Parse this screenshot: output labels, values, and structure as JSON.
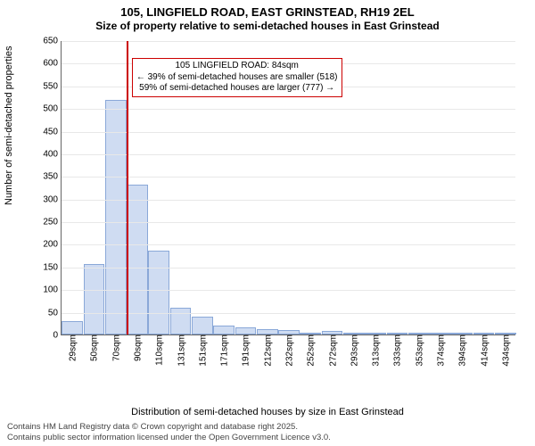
{
  "title": "105, LINGFIELD ROAD, EAST GRINSTEAD, RH19 2EL",
  "subtitle": "Size of property relative to semi-detached houses in East Grinstead",
  "chart": {
    "type": "histogram",
    "ylabel": "Number of semi-detached properties",
    "xlabel": "Distribution of semi-detached houses by size in East Grinstead",
    "ylim": [
      0,
      650
    ],
    "ytick_step": 50,
    "bar_fill": "#cfdcf2",
    "bar_border": "#8aa8d8",
    "grid_color": "#e8e8e8",
    "axis_color": "#666666",
    "background": "#ffffff",
    "bars": [
      {
        "label": "29sqm",
        "value": 30
      },
      {
        "label": "50sqm",
        "value": 155
      },
      {
        "label": "70sqm",
        "value": 518
      },
      {
        "label": "90sqm",
        "value": 330
      },
      {
        "label": "110sqm",
        "value": 185
      },
      {
        "label": "131sqm",
        "value": 60
      },
      {
        "label": "151sqm",
        "value": 40
      },
      {
        "label": "171sqm",
        "value": 20
      },
      {
        "label": "191sqm",
        "value": 15
      },
      {
        "label": "212sqm",
        "value": 12
      },
      {
        "label": "232sqm",
        "value": 10
      },
      {
        "label": "252sqm",
        "value": 3
      },
      {
        "label": "272sqm",
        "value": 8
      },
      {
        "label": "293sqm",
        "value": 3
      },
      {
        "label": "313sqm",
        "value": 2
      },
      {
        "label": "333sqm",
        "value": 2
      },
      {
        "label": "353sqm",
        "value": 0
      },
      {
        "label": "374sqm",
        "value": 2
      },
      {
        "label": "394sqm",
        "value": 0
      },
      {
        "label": "414sqm",
        "value": 2
      },
      {
        "label": "434sqm",
        "value": 2
      }
    ],
    "highlight": {
      "at_bar_boundary": 3,
      "line_color": "#cc0000",
      "callout_lines": [
        "105 LINGFIELD ROAD: 84sqm",
        "← 39% of semi-detached houses are smaller (518)",
        "59% of semi-detached houses are larger (777) →"
      ]
    }
  },
  "footer": {
    "line1": "Contains HM Land Registry data © Crown copyright and database right 2025.",
    "line2": "Contains public sector information licensed under the Open Government Licence v3.0."
  }
}
